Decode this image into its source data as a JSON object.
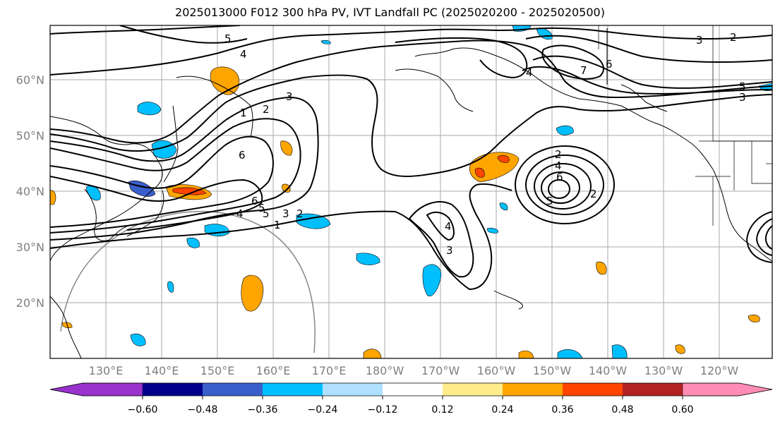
{
  "title": "2025013000 F012 300 hPa PV, IVT Landfall PC (2025020200 - 2025020500)",
  "map": {
    "lat_labels": [
      "60°N",
      "50°N",
      "40°N",
      "30°N",
      "20°N"
    ],
    "lon_labels": [
      "130°E",
      "140°E",
      "150°E",
      "160°E",
      "170°E",
      "180°W",
      "170°W",
      "160°W",
      "150°W",
      "140°W",
      "130°W",
      "120°W"
    ],
    "contour_labels": [
      "5",
      "4",
      "1",
      "2",
      "6",
      "3",
      "5",
      "6",
      "4",
      "5",
      "3",
      "1",
      "2",
      "4",
      "3",
      "4",
      "7",
      "6",
      "5",
      "3",
      "3",
      "2",
      "2",
      "4",
      "6",
      "5",
      "2"
    ]
  },
  "colorbar": {
    "ticks": [
      "−0.60",
      "−0.48",
      "−0.36",
      "−0.24",
      "−0.12",
      "0.12",
      "0.24",
      "0.36",
      "0.48",
      "0.60"
    ],
    "colors": [
      "#9932cc",
      "#00008b",
      "#3a5fcd",
      "#00bfff",
      "#b0e0ff",
      "#ffffff",
      "#ffec8b",
      "#ffa500",
      "#ff4500",
      "#b22222",
      "#ff8cb4"
    ]
  }
}
